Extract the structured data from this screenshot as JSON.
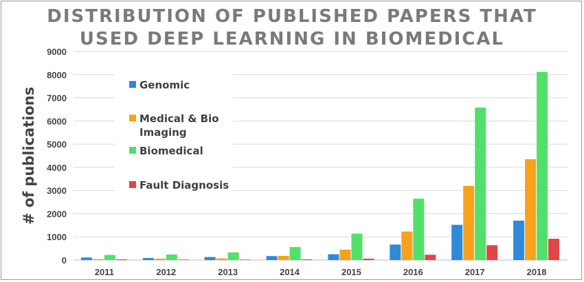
{
  "chart_data": {
    "type": "bar",
    "title_lines": [
      "DISTRIBUTION OF PUBLISHED PAPERS THAT",
      "USED DEEP LEARNING IN BIOMEDICAL"
    ],
    "xlabel": "",
    "ylabel": "# of publications",
    "ylim": [
      0,
      9000
    ],
    "yticks": [
      "0",
      "1000",
      "2000",
      "3000",
      "4000",
      "5000",
      "6000",
      "7000",
      "8000",
      "9000"
    ],
    "categories": [
      "2011",
      "2012",
      "2013",
      "2014",
      "2015",
      "2016",
      "2017",
      "2018"
    ],
    "grid": true,
    "legend_position": "top-left",
    "series": [
      {
        "name": "Genomic",
        "color": "#2e8ad8",
        "values": [
          110,
          90,
          130,
          170,
          250,
          670,
          1520,
          1700
        ]
      },
      {
        "name": "Medical & Bio Imaging",
        "color": "#f7a21b",
        "values": [
          40,
          60,
          70,
          180,
          450,
          1230,
          3200,
          4350
        ]
      },
      {
        "name": "Biomedical",
        "color": "#52e06a",
        "values": [
          220,
          240,
          330,
          560,
          1140,
          2650,
          6580,
          8120
        ]
      },
      {
        "name": "Fault Diagnosis",
        "color": "#e0454a",
        "values": [
          30,
          20,
          20,
          30,
          60,
          230,
          640,
          920
        ]
      }
    ]
  }
}
